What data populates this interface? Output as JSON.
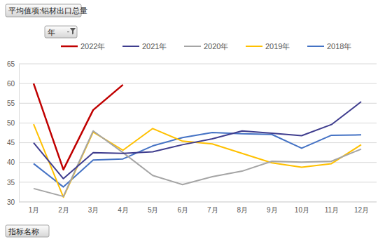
{
  "chart_data": {
    "type": "line",
    "title": "平均值项:铝材出口总量",
    "annotations": [
      "年",
      "指标名称"
    ],
    "categories": [
      "1月",
      "2月",
      "3月",
      "4月",
      "5月",
      "6月",
      "7月",
      "8月",
      "9月",
      "10月",
      "11月",
      "12月"
    ],
    "series": [
      {
        "name": "2022年",
        "color": "#c00000",
        "values": [
          60.0,
          38.2,
          53.3,
          59.7,
          null,
          null,
          null,
          null,
          null,
          null,
          null,
          null
        ]
      },
      {
        "name": "2021年",
        "color": "#3f3d8e",
        "values": [
          45.0,
          35.9,
          42.5,
          42.3,
          42.7,
          44.5,
          46.0,
          48.0,
          47.4,
          46.8,
          49.6,
          55.4
        ]
      },
      {
        "name": "2020年",
        "color": "#a5a5a5",
        "values": [
          33.4,
          31.4,
          48.0,
          42.5,
          36.7,
          34.4,
          36.4,
          37.8,
          40.3,
          40.1,
          40.3,
          43.4
        ]
      },
      {
        "name": "2019年",
        "color": "#ffc000",
        "values": [
          49.7,
          31.2,
          47.7,
          43.1,
          48.6,
          45.4,
          44.7,
          42.3,
          39.9,
          38.8,
          39.7,
          44.5
        ]
      },
      {
        "name": "2018年",
        "color": "#4472c4",
        "values": [
          39.7,
          33.8,
          40.6,
          40.9,
          44.2,
          46.3,
          47.6,
          47.3,
          47.1,
          43.6,
          46.9,
          47.0
        ]
      }
    ],
    "ylim": [
      30,
      65
    ],
    "yticks": [
      30,
      35,
      40,
      45,
      50,
      55,
      60,
      65
    ],
    "grid": true,
    "legend": "top"
  }
}
